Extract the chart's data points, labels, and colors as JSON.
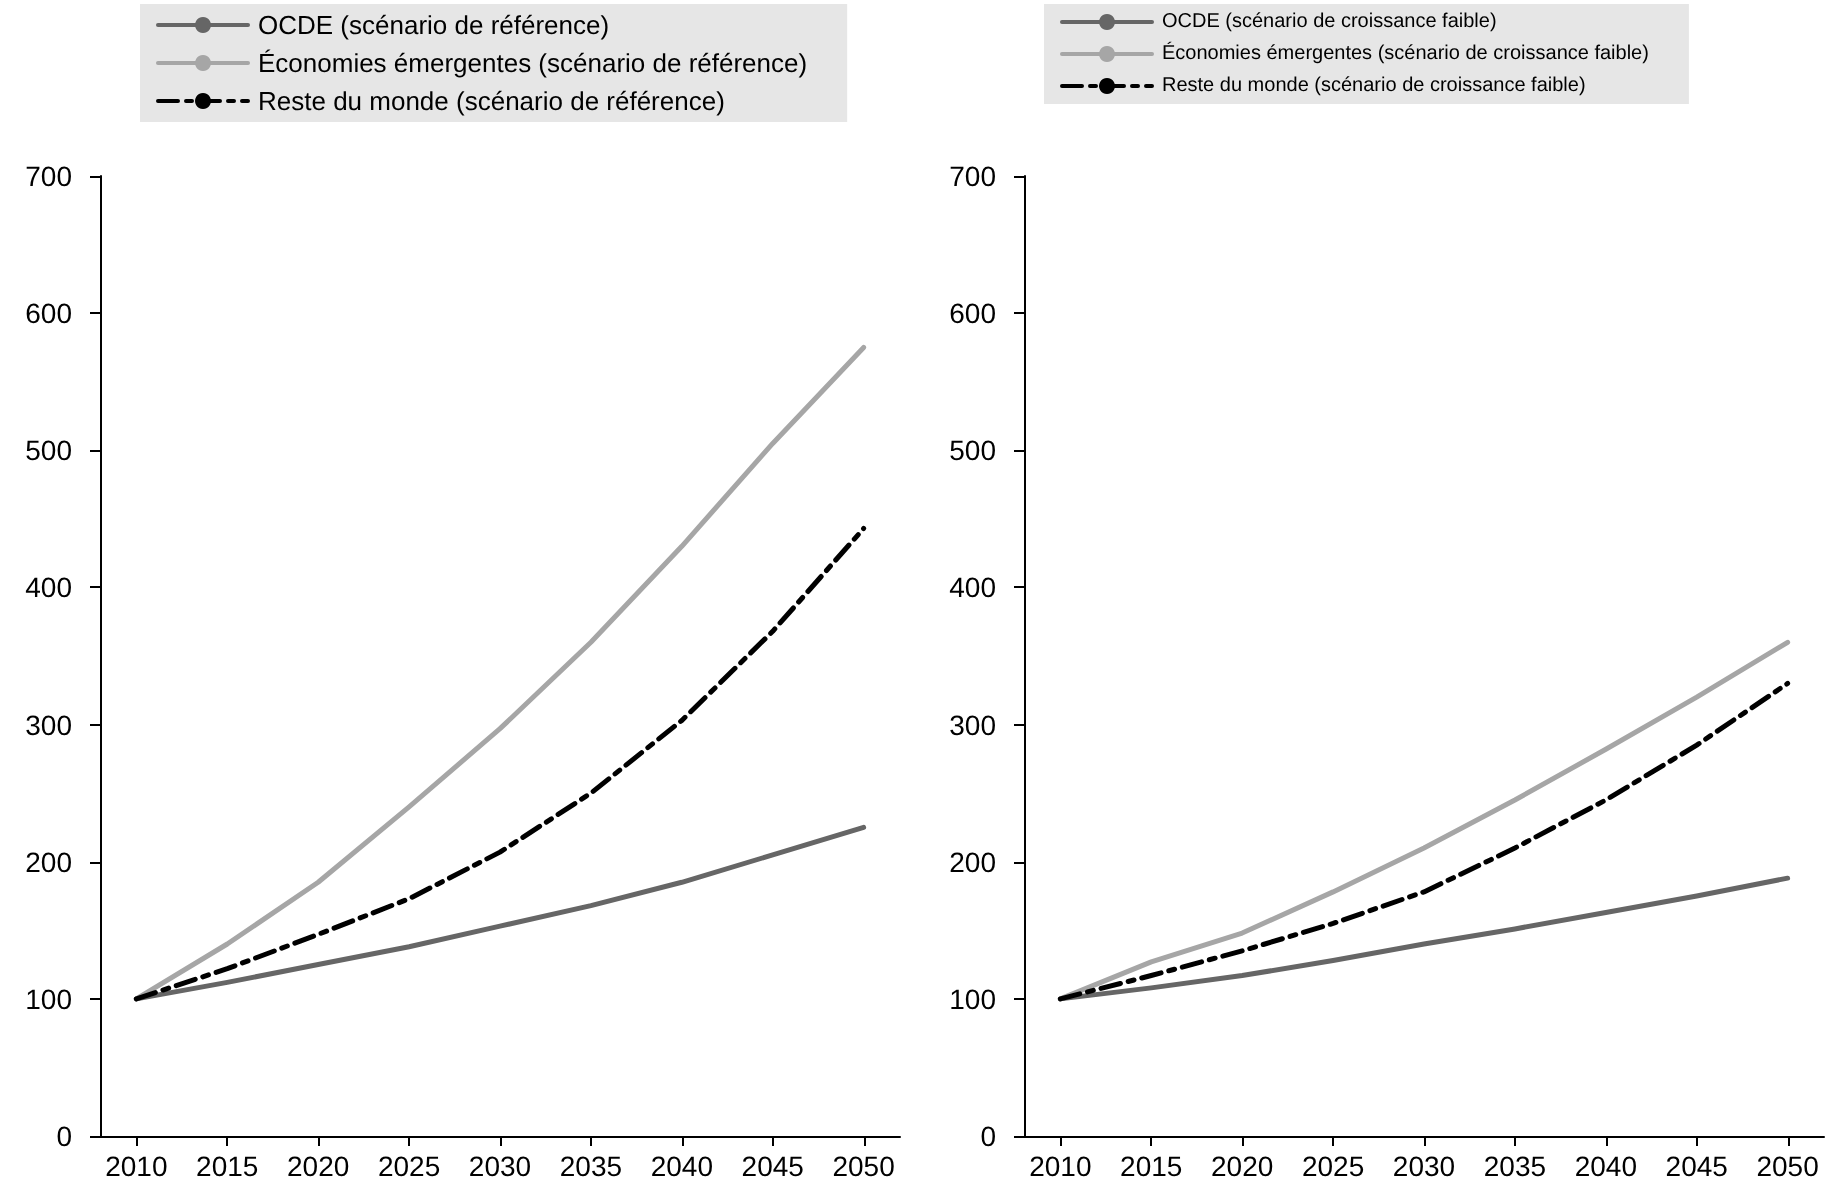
{
  "chart_data": [
    {
      "type": "line",
      "x": [
        2010,
        2015,
        2020,
        2025,
        2030,
        2035,
        2040,
        2045,
        2050
      ],
      "xlim": [
        2008,
        2052
      ],
      "xticks": [
        2010,
        2015,
        2020,
        2025,
        2030,
        2035,
        2040,
        2045,
        2050
      ],
      "ylim": [
        0,
        700
      ],
      "yticks": [
        0,
        100,
        200,
        300,
        400,
        500,
        600,
        700
      ],
      "legend": "top",
      "grid": false,
      "series": [
        {
          "name": "OCDE (scénario de référence)",
          "color": "#666666",
          "line_style": "solid",
          "values": [
            100,
            112,
            125,
            138,
            153,
            168,
            185,
            205,
            225
          ]
        },
        {
          "name": "Économies émergentes (scénario de référence)",
          "color": "#a6a6a6",
          "line_style": "solid",
          "values": [
            100,
            140,
            185,
            240,
            297,
            360,
            430,
            505,
            575
          ]
        },
        {
          "name": "Reste du monde (scénario de référence)",
          "color": "#000000",
          "line_style": "dashed",
          "values": [
            100,
            122,
            147,
            173,
            207,
            250,
            303,
            368,
            443
          ]
        }
      ]
    },
    {
      "type": "line",
      "x": [
        2010,
        2015,
        2020,
        2025,
        2030,
        2035,
        2040,
        2045,
        2050
      ],
      "xlim": [
        2008,
        2052
      ],
      "xticks": [
        2010,
        2015,
        2020,
        2025,
        2030,
        2035,
        2040,
        2045,
        2050
      ],
      "ylim": [
        0,
        700
      ],
      "yticks": [
        0,
        100,
        200,
        300,
        400,
        500,
        600,
        700
      ],
      "legend": "top",
      "grid": false,
      "series": [
        {
          "name": "OCDE (scénario de croissance faible)",
          "color": "#666666",
          "line_style": "solid",
          "values": [
            100,
            108,
            117,
            128,
            140,
            151,
            163,
            175,
            188
          ]
        },
        {
          "name": "Économies émergentes (scénario de croissance faible)",
          "color": "#a6a6a6",
          "line_style": "solid",
          "values": [
            100,
            127,
            148,
            178,
            210,
            245,
            282,
            320,
            360
          ]
        },
        {
          "name": "Reste du monde (scénario de croissance faible)",
          "color": "#000000",
          "line_style": "dashed",
          "values": [
            100,
            117,
            135,
            155,
            178,
            210,
            245,
            285,
            330
          ]
        }
      ]
    }
  ]
}
